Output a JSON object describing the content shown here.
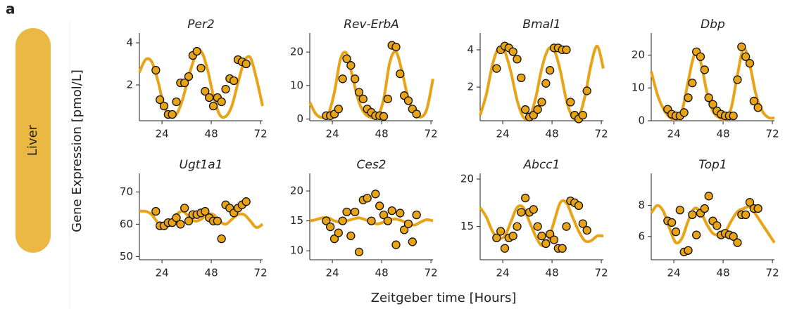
{
  "panel_label": "a",
  "row_label": "Liver",
  "ylabel": "Gene Expression [pmol/L]",
  "xlabel": "Zeitgeber time [Hours]",
  "chart_data": [
    {
      "type": "scatter",
      "title": "Per2",
      "color": "#e8a317",
      "xlim": [
        13,
        73
      ],
      "xticks": [
        24,
        48,
        72
      ],
      "ylim": [
        0.3,
        4.2
      ],
      "yticks": [
        2,
        4
      ],
      "x": [
        21,
        23,
        25,
        27,
        29,
        31,
        33,
        35,
        37,
        39,
        41,
        43,
        45,
        47,
        49,
        51,
        53,
        55,
        57,
        59,
        61,
        63,
        65
      ],
      "values": [
        2.7,
        1.3,
        1.0,
        0.6,
        0.6,
        1.2,
        2.1,
        2.1,
        2.4,
        3.4,
        3.6,
        2.8,
        1.7,
        1.4,
        1.0,
        1.4,
        1.2,
        1.8,
        2.3,
        2.2,
        3.2,
        3.1,
        3.0
      ],
      "curve": {
        "x": [
          13,
          16,
          19,
          22,
          25,
          28,
          31,
          34,
          37,
          40,
          43,
          46,
          49,
          52,
          55,
          58,
          61,
          64,
          67,
          70,
          73
        ],
        "values": [
          2.6,
          3.2,
          3.1,
          2.2,
          1.0,
          0.5,
          0.6,
          1.3,
          2.4,
          3.3,
          3.6,
          2.8,
          1.5,
          0.6,
          0.5,
          1.0,
          2.1,
          3.1,
          3.3,
          2.3,
          1.0
        ]
      }
    },
    {
      "type": "scatter",
      "title": "Rev-ErbA",
      "color": "#e8a317",
      "xlim": [
        13,
        73
      ],
      "xticks": [
        24,
        48,
        72
      ],
      "ylim": [
        -0.5,
        24
      ],
      "yticks": [
        0,
        10,
        20
      ],
      "x": [
        21,
        23,
        25,
        27,
        29,
        31,
        33,
        35,
        37,
        39,
        41,
        43,
        45,
        47,
        49,
        51,
        53,
        55,
        57,
        59,
        61,
        63,
        65
      ],
      "values": [
        1,
        1,
        1.5,
        3,
        12,
        18,
        16,
        12,
        8,
        6,
        3,
        2,
        1,
        1,
        0.8,
        6,
        22,
        21.5,
        13.5,
        7,
        5.5,
        3,
        1.5
      ],
      "curve": {
        "x": [
          13,
          16,
          19,
          22,
          25,
          28,
          31,
          34,
          37,
          40,
          43,
          46,
          49,
          52,
          55,
          58,
          61,
          64,
          67,
          70,
          73
        ],
        "values": [
          5,
          1.5,
          0.5,
          1.5,
          8,
          18,
          19.5,
          12,
          5,
          1.5,
          0.5,
          0.8,
          6,
          17,
          20,
          14,
          6,
          2,
          0.6,
          3,
          12
        ]
      }
    },
    {
      "type": "scatter",
      "title": "Bmal1",
      "color": "#e8a317",
      "xlim": [
        13,
        73
      ],
      "xticks": [
        24,
        48,
        72
      ],
      "ylim": [
        0.2,
        4.6
      ],
      "yticks": [
        2,
        4
      ],
      "x": [
        21,
        23,
        25,
        27,
        29,
        31,
        33,
        35,
        37,
        39,
        41,
        43,
        45,
        47,
        49,
        51,
        53,
        55,
        57,
        59,
        61,
        63,
        65
      ],
      "values": [
        3.0,
        4.0,
        4.2,
        4.1,
        3.9,
        3.5,
        2.5,
        0.8,
        0.4,
        0.5,
        0.8,
        1.2,
        2.2,
        2.9,
        4.1,
        4.1,
        4.0,
        4.0,
        1.2,
        0.5,
        0.3,
        0.5,
        1.8
      ],
      "curve": {
        "x": [
          13,
          16,
          19,
          22,
          25,
          28,
          31,
          34,
          37,
          40,
          43,
          46,
          49,
          52,
          55,
          58,
          61,
          64,
          67,
          70,
          73
        ],
        "values": [
          0.5,
          1.6,
          3.2,
          4.1,
          3.9,
          2.8,
          1.3,
          0.4,
          0.4,
          1.4,
          3.0,
          4.0,
          4.0,
          2.9,
          1.3,
          0.4,
          0.4,
          1.5,
          3.2,
          4.2,
          3.0
        ]
      }
    },
    {
      "type": "scatter",
      "title": "Dbp",
      "color": "#e8a317",
      "xlim": [
        13,
        73
      ],
      "xticks": [
        24,
        48,
        72
      ],
      "ylim": [
        0,
        25
      ],
      "yticks": [
        0,
        10,
        20
      ],
      "x": [
        21,
        23,
        25,
        27,
        29,
        31,
        33,
        35,
        37,
        39,
        41,
        43,
        45,
        47,
        49,
        51,
        53,
        55,
        57,
        59,
        61,
        63,
        65
      ],
      "values": [
        3.5,
        2,
        1.5,
        1.5,
        2.5,
        7,
        11.5,
        21,
        19.5,
        15.5,
        7,
        5,
        3,
        2,
        1.5,
        1.5,
        1.5,
        12.5,
        22.5,
        19.5,
        17.5,
        6,
        4
      ],
      "curve": {
        "x": [
          13,
          16,
          19,
          22,
          25,
          28,
          31,
          34,
          37,
          40,
          43,
          46,
          49,
          52,
          55,
          58,
          61,
          64,
          67,
          70,
          73
        ],
        "values": [
          15,
          8,
          3.5,
          1,
          0.5,
          3,
          12,
          20,
          18,
          9,
          3,
          1,
          0.5,
          4,
          14,
          22,
          17,
          8,
          3,
          1,
          0.8
        ]
      }
    },
    {
      "type": "scatter",
      "title": "Ugt1a1",
      "color": "#e8a317",
      "xlim": [
        13,
        73
      ],
      "xticks": [
        24,
        48,
        72
      ],
      "ylim": [
        49,
        74
      ],
      "yticks": [
        50,
        60,
        70
      ],
      "x": [
        21,
        23,
        25,
        27,
        29,
        31,
        33,
        35,
        37,
        39,
        41,
        43,
        45,
        47,
        49,
        51,
        53,
        55,
        57,
        59,
        61,
        63,
        65
      ],
      "values": [
        64,
        59.5,
        59.5,
        60.5,
        60.5,
        62,
        60,
        65,
        61,
        63,
        63,
        63.5,
        64,
        62,
        61,
        61,
        55.5,
        66,
        65,
        63.5,
        65,
        66,
        67
      ],
      "curve": {
        "x": [
          13,
          16,
          19,
          22,
          25,
          28,
          31,
          34,
          37,
          40,
          43,
          46,
          49,
          52,
          55,
          58,
          61,
          64,
          67,
          70,
          73
        ],
        "values": [
          64,
          64,
          63,
          60.5,
          59.5,
          61,
          63,
          64,
          62.5,
          61,
          61.5,
          63,
          63,
          61,
          60,
          61.5,
          63,
          63,
          61,
          59,
          60
        ]
      }
    },
    {
      "type": "scatter",
      "title": "Ces2",
      "color": "#e8a317",
      "xlim": [
        13,
        73
      ],
      "xticks": [
        24,
        48,
        72
      ],
      "ylim": [
        8.5,
        22
      ],
      "yticks": [
        10,
        15,
        20
      ],
      "x": [
        21,
        23,
        25,
        27,
        29,
        31,
        33,
        35,
        37,
        39,
        41,
        43,
        45,
        47,
        49,
        51,
        53,
        55,
        57,
        59,
        61,
        63,
        65
      ],
      "values": [
        15,
        14,
        12,
        13,
        15,
        16.5,
        12.5,
        16.5,
        9.8,
        18.5,
        18.8,
        15,
        19.5,
        17.5,
        16,
        15,
        16.7,
        11,
        16.3,
        13.5,
        14.5,
        11.5,
        16
      ],
      "curve": {
        "x": [
          13,
          16,
          19,
          22,
          25,
          28,
          31,
          34,
          37,
          40,
          43,
          46,
          49,
          52,
          55,
          58,
          61,
          64,
          67,
          70,
          73
        ],
        "values": [
          15,
          15.2,
          15.5,
          15.5,
          15,
          14.8,
          15,
          15.3,
          15.5,
          15.2,
          14.8,
          14.5,
          14.8,
          15.2,
          15.3,
          15,
          14.5,
          14.3,
          14.8,
          15.2,
          15
        ]
      }
    },
    {
      "type": "scatter",
      "title": "Abcc1",
      "color": "#e8a317",
      "xlim": [
        13,
        73
      ],
      "xticks": [
        24,
        48,
        72
      ],
      "ylim": [
        11.5,
        20
      ],
      "yticks": [
        15,
        20
      ],
      "x": [
        21,
        23,
        25,
        27,
        29,
        31,
        33,
        35,
        37,
        39,
        41,
        43,
        45,
        47,
        49,
        51,
        53,
        55,
        57,
        59,
        61,
        63,
        65
      ],
      "values": [
        13.8,
        14.5,
        12.7,
        13.8,
        14,
        15,
        16.5,
        18,
        16.5,
        16.8,
        15,
        14,
        13.2,
        14.2,
        13.6,
        12.7,
        12.7,
        15,
        17.7,
        17.5,
        17.2,
        15.3,
        14.6
      ],
      "curve": {
        "x": [
          13,
          16,
          19,
          22,
          25,
          28,
          31,
          34,
          37,
          40,
          43,
          46,
          49,
          52,
          55,
          58,
          61,
          64,
          67,
          70,
          73
        ],
        "values": [
          17,
          16,
          14.5,
          13.8,
          14,
          15.5,
          17,
          17,
          15.5,
          14,
          13,
          13.5,
          15.5,
          17.5,
          17.5,
          16,
          14.5,
          13.5,
          13.5,
          14,
          14
        ]
      }
    },
    {
      "type": "scatter",
      "title": "Top1",
      "color": "#e8a317",
      "xlim": [
        13,
        73
      ],
      "xticks": [
        24,
        48,
        72
      ],
      "ylim": [
        4.5,
        9.7
      ],
      "yticks": [
        6,
        8
      ],
      "x": [
        21,
        23,
        25,
        27,
        29,
        31,
        33,
        35,
        37,
        39,
        41,
        43,
        45,
        47,
        49,
        51,
        53,
        55,
        57,
        59,
        61,
        63,
        65
      ],
      "values": [
        7.0,
        6.9,
        6.3,
        7.7,
        5.0,
        5.1,
        7.4,
        6.1,
        7.5,
        7.8,
        8.6,
        7.0,
        6.7,
        6.1,
        6.2,
        6.1,
        6.0,
        5.6,
        7.4,
        7.4,
        8.2,
        7.8,
        7.8
      ],
      "curve": {
        "x": [
          13,
          16,
          19,
          22,
          25,
          28,
          31,
          34,
          37,
          40,
          43,
          46,
          49,
          52,
          55,
          58,
          61,
          64,
          67,
          70,
          73
        ],
        "values": [
          7.5,
          8,
          7.6,
          6.5,
          5.6,
          5.9,
          7.0,
          7.8,
          7.6,
          6.8,
          6.2,
          6.1,
          6.3,
          7.0,
          7.6,
          7.8,
          7.9,
          7.4,
          6.8,
          6.2,
          5.6
        ]
      }
    }
  ]
}
